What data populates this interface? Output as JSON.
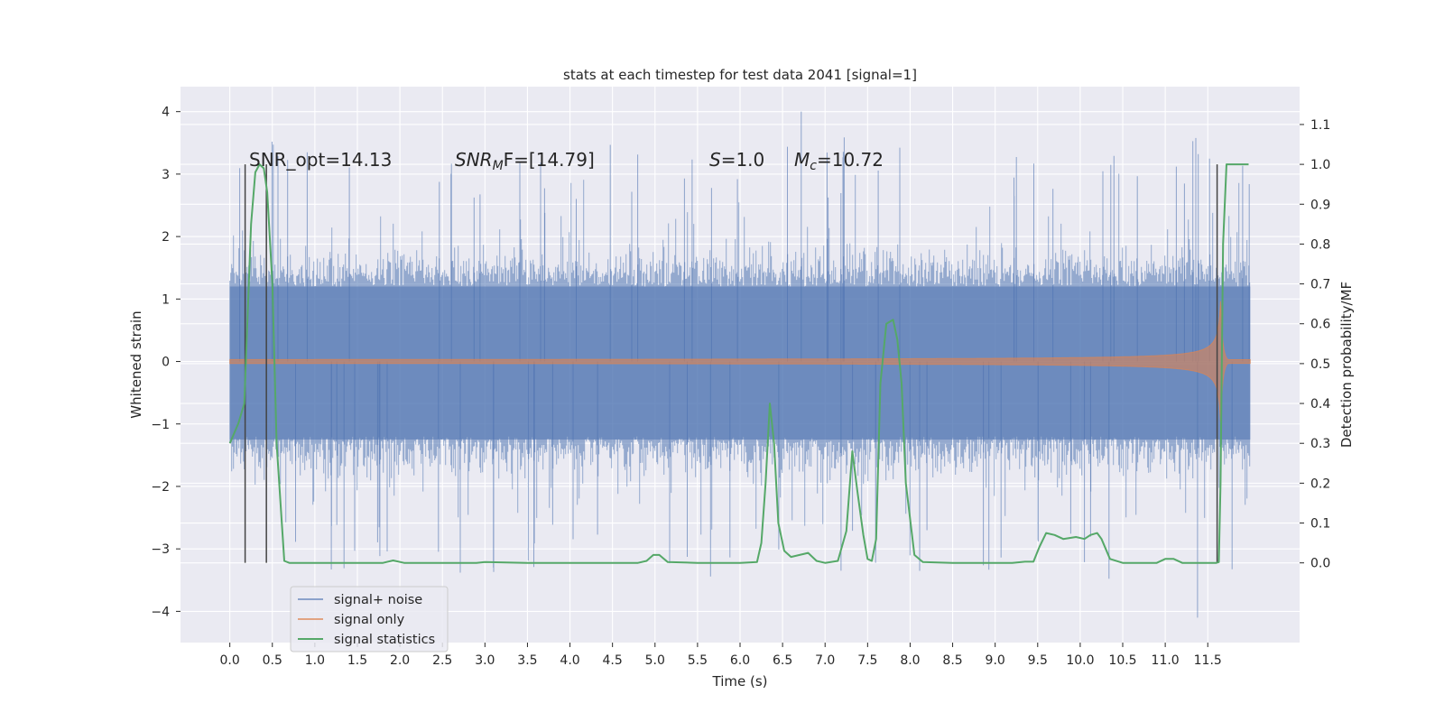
{
  "chart_data": {
    "type": "line",
    "title": "stats at each timestep for test data 2041 [signal=1]",
    "xlabel": "Time (s)",
    "ylabel": "Whitened strain",
    "y2label": "Detection probability/MF",
    "xlim": [
      -0.58,
      12.58
    ],
    "ylim": [
      -4.5,
      4.4
    ],
    "y2lim": [
      -0.2,
      1.195
    ],
    "grid": true,
    "x_ticks": [
      "0.0",
      "0.5",
      "1.0",
      "1.5",
      "2.0",
      "2.5",
      "3.0",
      "3.5",
      "4.0",
      "4.5",
      "5.0",
      "5.5",
      "6.0",
      "6.5",
      "7.0",
      "7.5",
      "8.0",
      "8.5",
      "9.0",
      "9.5",
      "10.0",
      "10.5",
      "11.0",
      "11.5"
    ],
    "y_ticks": [
      "4",
      "3",
      "2",
      "1",
      "0",
      "−1",
      "−2",
      "−3",
      "−4"
    ],
    "y2_ticks": [
      "1.1",
      "1.0",
      "0.9",
      "0.8",
      "0.7",
      "0.6",
      "0.5",
      "0.4",
      "0.3",
      "0.2",
      "0.1",
      "0.0"
    ],
    "annotations": {
      "snr_opt": "SNR_opt=14.13",
      "snr_mf_main": "SNR",
      "snr_mf_sub": "M",
      "snr_mf_rest": "F=[14.79]",
      "s_italic": "S",
      "s_rest": "=1.0",
      "mc_italic": "M",
      "mc_sub": "c",
      "mc_rest": "=10.72"
    },
    "legend": {
      "placement": "lower-left",
      "entries": [
        "signal+ noise",
        "signal only",
        "signal statistics"
      ]
    },
    "series": [
      {
        "name": "signal+ noise",
        "color": "#4c72b0",
        "kind": "noise",
        "x_range": [
          0.0,
          12.0
        ],
        "band": [
          -1.25,
          1.2
        ],
        "extremes": {
          "max": 4.0,
          "min": -4.1
        }
      },
      {
        "name": "signal only",
        "color": "#dd8452",
        "kind": "chirp",
        "x_range": [
          0.0,
          12.0
        ],
        "merger_time": 11.65,
        "peak_amplitude": 1.0
      },
      {
        "name": "signal statistics",
        "color": "#55a868",
        "axis": "right",
        "x": [
          0.0,
          0.1,
          0.17,
          0.25,
          0.3,
          0.35,
          0.4,
          0.44,
          0.5,
          0.55,
          0.64,
          0.7,
          1.0,
          1.5,
          1.8,
          1.92,
          2.05,
          2.5,
          2.9,
          3.0,
          3.5,
          4.0,
          4.5,
          4.8,
          4.9,
          4.98,
          5.05,
          5.15,
          5.5,
          6.0,
          6.2,
          6.25,
          6.3,
          6.35,
          6.4,
          6.45,
          6.52,
          6.6,
          6.7,
          6.8,
          6.9,
          7.0,
          7.15,
          7.25,
          7.32,
          7.38,
          7.45,
          7.5,
          7.55,
          7.6,
          7.65,
          7.72,
          7.8,
          7.85,
          7.9,
          7.95,
          8.05,
          8.15,
          8.5,
          9.0,
          9.2,
          9.35,
          9.45,
          9.52,
          9.6,
          9.7,
          9.8,
          9.95,
          10.05,
          10.12,
          10.2,
          10.25,
          10.35,
          10.5,
          10.9,
          11.0,
          11.1,
          11.2,
          11.5,
          11.6,
          11.63,
          11.65,
          11.68,
          11.72,
          11.8,
          11.9,
          11.98
        ],
        "y": [
          0.3,
          0.35,
          0.4,
          0.85,
          0.98,
          1.0,
          0.99,
          0.93,
          0.7,
          0.3,
          0.005,
          0.0,
          0.0,
          0.0,
          0.0,
          0.006,
          0.0,
          0.0,
          0.0,
          0.002,
          0.0,
          0.0,
          0.0,
          0.0,
          0.005,
          0.02,
          0.02,
          0.002,
          0.0,
          0.0,
          0.002,
          0.05,
          0.2,
          0.4,
          0.3,
          0.1,
          0.03,
          0.015,
          0.02,
          0.025,
          0.005,
          0.0,
          0.005,
          0.08,
          0.28,
          0.18,
          0.07,
          0.01,
          0.005,
          0.06,
          0.45,
          0.6,
          0.61,
          0.56,
          0.45,
          0.2,
          0.02,
          0.002,
          0.0,
          0.0,
          0.0,
          0.003,
          0.003,
          0.04,
          0.075,
          0.07,
          0.06,
          0.065,
          0.06,
          0.07,
          0.075,
          0.06,
          0.01,
          0.0,
          0.0,
          0.01,
          0.01,
          0.0,
          0.0,
          0.0,
          0.002,
          0.2,
          0.8,
          1.0,
          1.0,
          1.0,
          1.0
        ]
      }
    ],
    "vertical_markers": [
      0.18,
      0.43,
      11.61
    ],
    "marker_color": "#444444"
  }
}
